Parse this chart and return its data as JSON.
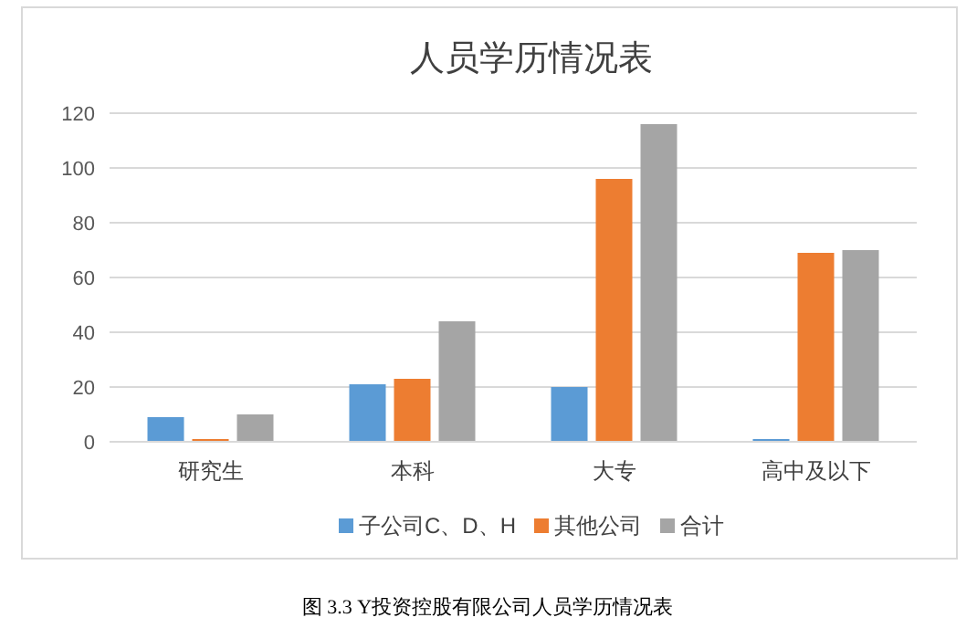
{
  "chart_data": {
    "type": "bar",
    "title": "人员学历情况表",
    "categories": [
      "研究生",
      "本科",
      "大专",
      "高中及以下"
    ],
    "series": [
      {
        "name": "子公司C、D、H",
        "color": "#5b9bd5",
        "values": [
          9,
          21,
          20,
          1
        ]
      },
      {
        "name": "其他公司",
        "color": "#ed7d31",
        "values": [
          1,
          23,
          96,
          69
        ]
      },
      {
        "name": "合计",
        "color": "#a5a5a5",
        "values": [
          10,
          44,
          116,
          70
        ]
      }
    ],
    "ylim": [
      0,
      120
    ],
    "yticks": [
      0,
      20,
      40,
      60,
      80,
      100,
      120
    ],
    "grid": "y",
    "legend": "bottom",
    "annotations": [
      "图 3.3  Y投资控股有限公司人员学历情况表"
    ]
  }
}
